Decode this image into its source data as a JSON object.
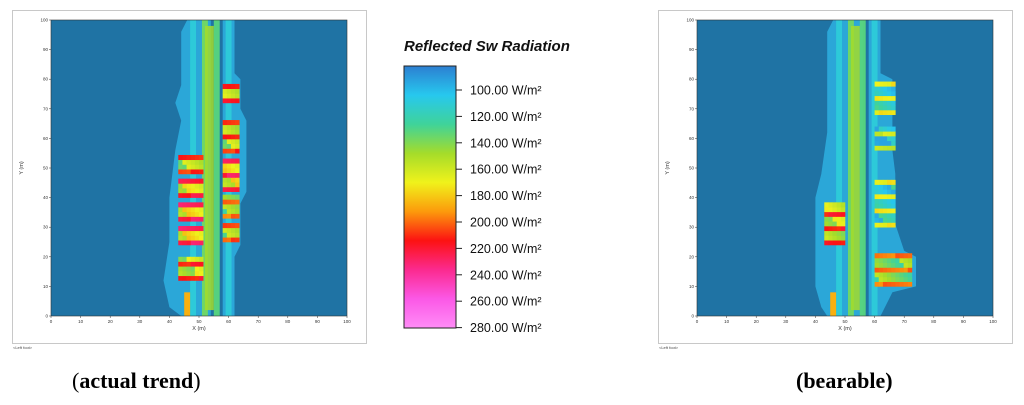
{
  "legend": {
    "title": "Reflected Sw Radiation",
    "ticks": [
      "100.00 W/m²",
      "120.00 W/m²",
      "140.00 W/m²",
      "160.00 W/m²",
      "180.00 W/m²",
      "200.00 W/m²",
      "220.00 W/m²",
      "240.00 W/m²",
      "260.00 W/m²",
      "280.00 W/m²"
    ],
    "colors": [
      "#2c7fd1",
      "#27c8ee",
      "#3fd39a",
      "#a5dc2a",
      "#f0f21b",
      "#fc9a0c",
      "#fc1212",
      "#fb2a8f",
      "#fb58e6",
      "#ff8cf7"
    ]
  },
  "captions": {
    "left_open": "(",
    "left_bold": "actual trend",
    "left_close": ")",
    "right_text": "(bearable)"
  },
  "footer_label": "<Left foot>",
  "colors": {
    "background_field": "#1f73a4",
    "halo": "#2ba7d8",
    "road_light": "#37c1e6"
  },
  "chart_data": [
    {
      "type": "heatmap",
      "name": "actual trend",
      "xlabel": "X (m)",
      "ylabel": "Y (m)",
      "xlim": [
        0,
        100
      ],
      "ylim": [
        0,
        100
      ],
      "xticks": [
        0,
        10,
        20,
        30,
        40,
        50,
        60,
        70,
        80,
        90,
        100
      ],
      "yticks": [
        0,
        10,
        20,
        30,
        40,
        50,
        60,
        70,
        80,
        90,
        100
      ],
      "value_range_w_m2": [
        100,
        280
      ],
      "background_value_w_m2": 105,
      "canyon_outline": [
        [
          44,
          100
        ],
        [
          42,
          95
        ],
        [
          42,
          78
        ],
        [
          40,
          70
        ],
        [
          42,
          65
        ],
        [
          40,
          55
        ],
        [
          39,
          40
        ],
        [
          38,
          25
        ],
        [
          38,
          12
        ],
        [
          40,
          3
        ],
        [
          44,
          0
        ],
        [
          52,
          0
        ],
        [
          52,
          100
        ]
      ],
      "block_rows": [
        {
          "x": [
            43,
            51
          ],
          "y": [
            12,
            20
          ],
          "value": 220
        },
        {
          "x": [
            43,
            51
          ],
          "y": [
            24,
            30
          ],
          "value": 230
        },
        {
          "x": [
            43,
            51
          ],
          "y": [
            32,
            38
          ],
          "value": 230
        },
        {
          "x": [
            43,
            51
          ],
          "y": [
            40,
            46
          ],
          "value": 225
        },
        {
          "x": [
            43,
            51
          ],
          "y": [
            48,
            54
          ],
          "value": 215
        },
        {
          "x": [
            58,
            63
          ],
          "y": [
            25,
            30
          ],
          "value": 210
        },
        {
          "x": [
            58,
            63
          ],
          "y": [
            33,
            40
          ],
          "value": 205
        },
        {
          "x": [
            58,
            63
          ],
          "y": [
            42,
            52
          ],
          "value": 230
        },
        {
          "x": [
            58,
            63
          ],
          "y": [
            55,
            66
          ],
          "value": 215
        },
        {
          "x": [
            58,
            63
          ],
          "y": [
            72,
            78
          ],
          "value": 220
        }
      ]
    },
    {
      "type": "heatmap",
      "name": "bearable",
      "xlabel": "X (m)",
      "ylabel": "Y (m)",
      "xlim": [
        0,
        100
      ],
      "ylim": [
        0,
        100
      ],
      "xticks": [
        0,
        10,
        20,
        30,
        40,
        50,
        60,
        70,
        80,
        90,
        100
      ],
      "yticks": [
        0,
        10,
        20,
        30,
        40,
        50,
        60,
        70,
        80,
        90,
        100
      ],
      "value_range_w_m2": [
        100,
        280
      ],
      "background_value_w_m2": 105,
      "block_rows": [
        {
          "x": [
            43,
            49
          ],
          "y": [
            24,
            38
          ],
          "value": 220
        },
        {
          "x": [
            60,
            66
          ],
          "y": [
            68,
            78
          ],
          "value": 180
        },
        {
          "x": [
            60,
            66
          ],
          "y": [
            56,
            64
          ],
          "value": 170
        },
        {
          "x": [
            60,
            66
          ],
          "y": [
            30,
            46
          ],
          "value": 180
        },
        {
          "x": [
            60,
            72
          ],
          "y": [
            10,
            20
          ],
          "value": 205
        }
      ]
    }
  ]
}
